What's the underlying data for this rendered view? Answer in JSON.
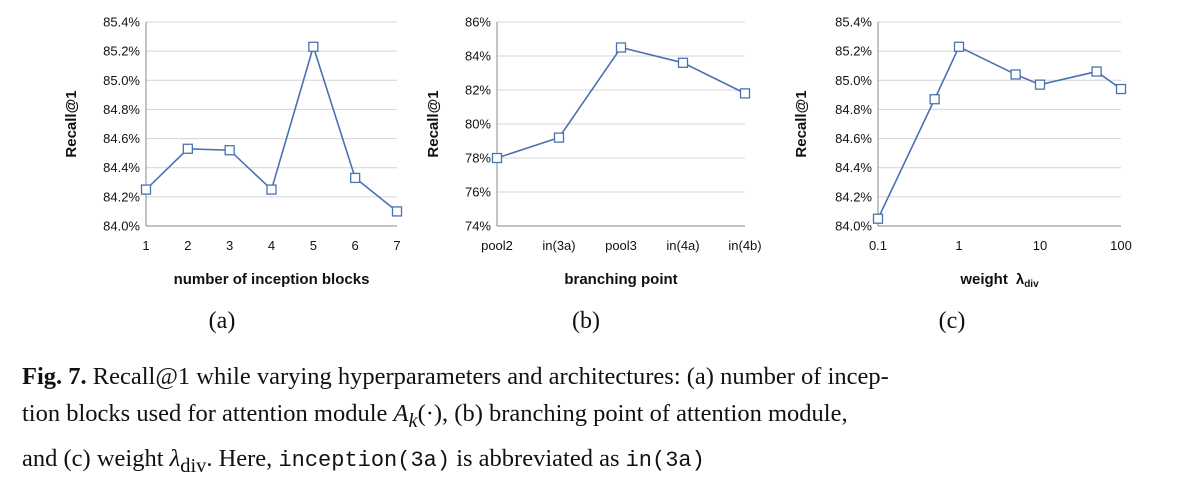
{
  "chart_data": [
    {
      "type": "line",
      "categories": [
        "1",
        "2",
        "3",
        "4",
        "5",
        "6",
        "7"
      ],
      "series": [
        {
          "values": [
            84.25,
            84.53,
            84.52,
            84.25,
            85.23,
            84.33,
            84.1
          ]
        }
      ],
      "xlabel": "number of inception blocks",
      "ylabel": "Recall@1",
      "ylim": [
        84.0,
        85.4
      ],
      "yticks": [
        "84.0%",
        "84.2%",
        "84.4%",
        "84.6%",
        "84.8%",
        "85.0%",
        "85.2%",
        "85.4%"
      ],
      "grid": true,
      "marker": "square",
      "color": "#4a72b0",
      "sublabel": "(a)"
    },
    {
      "type": "line",
      "categories": [
        "pool2",
        "in(3a)",
        "pool3",
        "in(4a)",
        "in(4b)"
      ],
      "series": [
        {
          "values": [
            78.0,
            79.2,
            84.5,
            83.6,
            81.8
          ]
        }
      ],
      "xlabel": "branching point",
      "ylabel": "Recall@1",
      "ylim": [
        74,
        86
      ],
      "yticks": [
        "74%",
        "76%",
        "78%",
        "80%",
        "82%",
        "84%",
        "86%"
      ],
      "grid": true,
      "marker": "square",
      "color": "#4a72b0",
      "sublabel": "(b)"
    },
    {
      "type": "line",
      "x": [
        0.1,
        0.5,
        1,
        5,
        10,
        50,
        100
      ],
      "series": [
        {
          "values": [
            84.05,
            84.87,
            85.23,
            85.04,
            84.97,
            85.06,
            84.94
          ]
        }
      ],
      "xlabel": "weight",
      "xlabel_symbol": "λ",
      "xlabel_subscript": "div",
      "ylabel": "Recall@1",
      "xscale": "log",
      "xlim": [
        0.1,
        100
      ],
      "xticks": [
        "0.1",
        "1",
        "10",
        "100"
      ],
      "ylim": [
        84.0,
        85.4
      ],
      "yticks": [
        "84.0%",
        "84.2%",
        "84.4%",
        "84.6%",
        "84.8%",
        "85.0%",
        "85.2%",
        "85.4%"
      ],
      "grid": true,
      "marker": "square",
      "color": "#4a72b0",
      "sublabel": "(c)"
    }
  ],
  "caption": {
    "fig_label": "Fig. 7.",
    "line1_text": " Recall@1 while varying hyperparameters and architectures: (a) number of incep-",
    "line2_a": "tion blocks used for attention module ",
    "line2_math_A": "A",
    "line2_math_k": "k",
    "line2_math_arg": "(·)",
    "line2_b": ", (b) branching point of attention module,",
    "line3_a": "and (c) weight ",
    "line3_lambda": "λ",
    "line3_div": "div",
    "line3_b": ". Here, ",
    "line3_code1": "inception(3a)",
    "line3_c": " is abbreviated as ",
    "line3_code2": "in(3a)"
  }
}
